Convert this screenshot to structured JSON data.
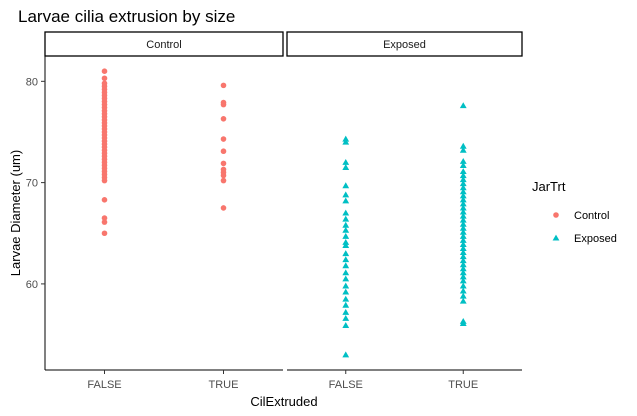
{
  "chart_data": {
    "type": "scatter",
    "title": "Larvae cilia extrusion by size",
    "xlabel": "CilExtruded",
    "ylabel": "Larvae Diameter (um)",
    "x_categories": [
      "FALSE",
      "TRUE"
    ],
    "y_ticks": [
      "60",
      "70",
      "80"
    ],
    "ylim": [
      51.5,
      82.5
    ],
    "grid": false,
    "legend": {
      "title": "JarTrt",
      "position": "right",
      "entries": [
        {
          "label": "Control",
          "color": "#F8766D",
          "shape": "circle"
        },
        {
          "label": "Exposed",
          "color": "#00BFC4",
          "shape": "triangle"
        }
      ]
    },
    "facets": [
      {
        "label": "Control",
        "series": "Control",
        "points": [
          {
            "x": "FALSE",
            "y": [
              81.0,
              80.3,
              79.8,
              79.5,
              79.2,
              78.9,
              78.6,
              78.3,
              78.0,
              77.7,
              77.4,
              77.1,
              76.8,
              76.5,
              76.2,
              75.9,
              75.6,
              75.3,
              75.0,
              74.7,
              74.4,
              74.1,
              73.8,
              73.5,
              73.2,
              72.9,
              72.6,
              72.3,
              72.0,
              71.7,
              71.4,
              71.1,
              70.8,
              70.5,
              70.2,
              68.3,
              66.5,
              66.1,
              65.0
            ]
          },
          {
            "x": "TRUE",
            "y": [
              79.6,
              77.9,
              77.7,
              76.3,
              74.3,
              73.1,
              71.9,
              71.3,
              71.0,
              70.7,
              70.2,
              67.5
            ]
          }
        ]
      },
      {
        "label": "Exposed",
        "series": "Exposed",
        "points": [
          {
            "x": "FALSE",
            "y": [
              74.3,
              74.0,
              72.0,
              71.5,
              69.7,
              68.8,
              68.2,
              67.0,
              66.4,
              65.8,
              65.3,
              64.7,
              64.1,
              63.8,
              63.0,
              62.4,
              61.8,
              61.1,
              60.5,
              59.8,
              59.2,
              58.5,
              57.9,
              57.2,
              56.6,
              55.9,
              53.0
            ]
          },
          {
            "x": "TRUE",
            "y": [
              77.6,
              73.6,
              73.2,
              72.1,
              71.7,
              71.1,
              70.7,
              70.3,
              69.9,
              69.5,
              69.1,
              68.7,
              68.3,
              67.9,
              67.5,
              67.1,
              66.7,
              66.3,
              65.9,
              65.5,
              65.1,
              64.7,
              64.3,
              63.9,
              63.5,
              63.1,
              62.7,
              62.3,
              61.9,
              61.5,
              61.1,
              60.7,
              60.3,
              59.8,
              59.3,
              58.8,
              58.3,
              56.3,
              56.1
            ]
          }
        ]
      }
    ]
  }
}
